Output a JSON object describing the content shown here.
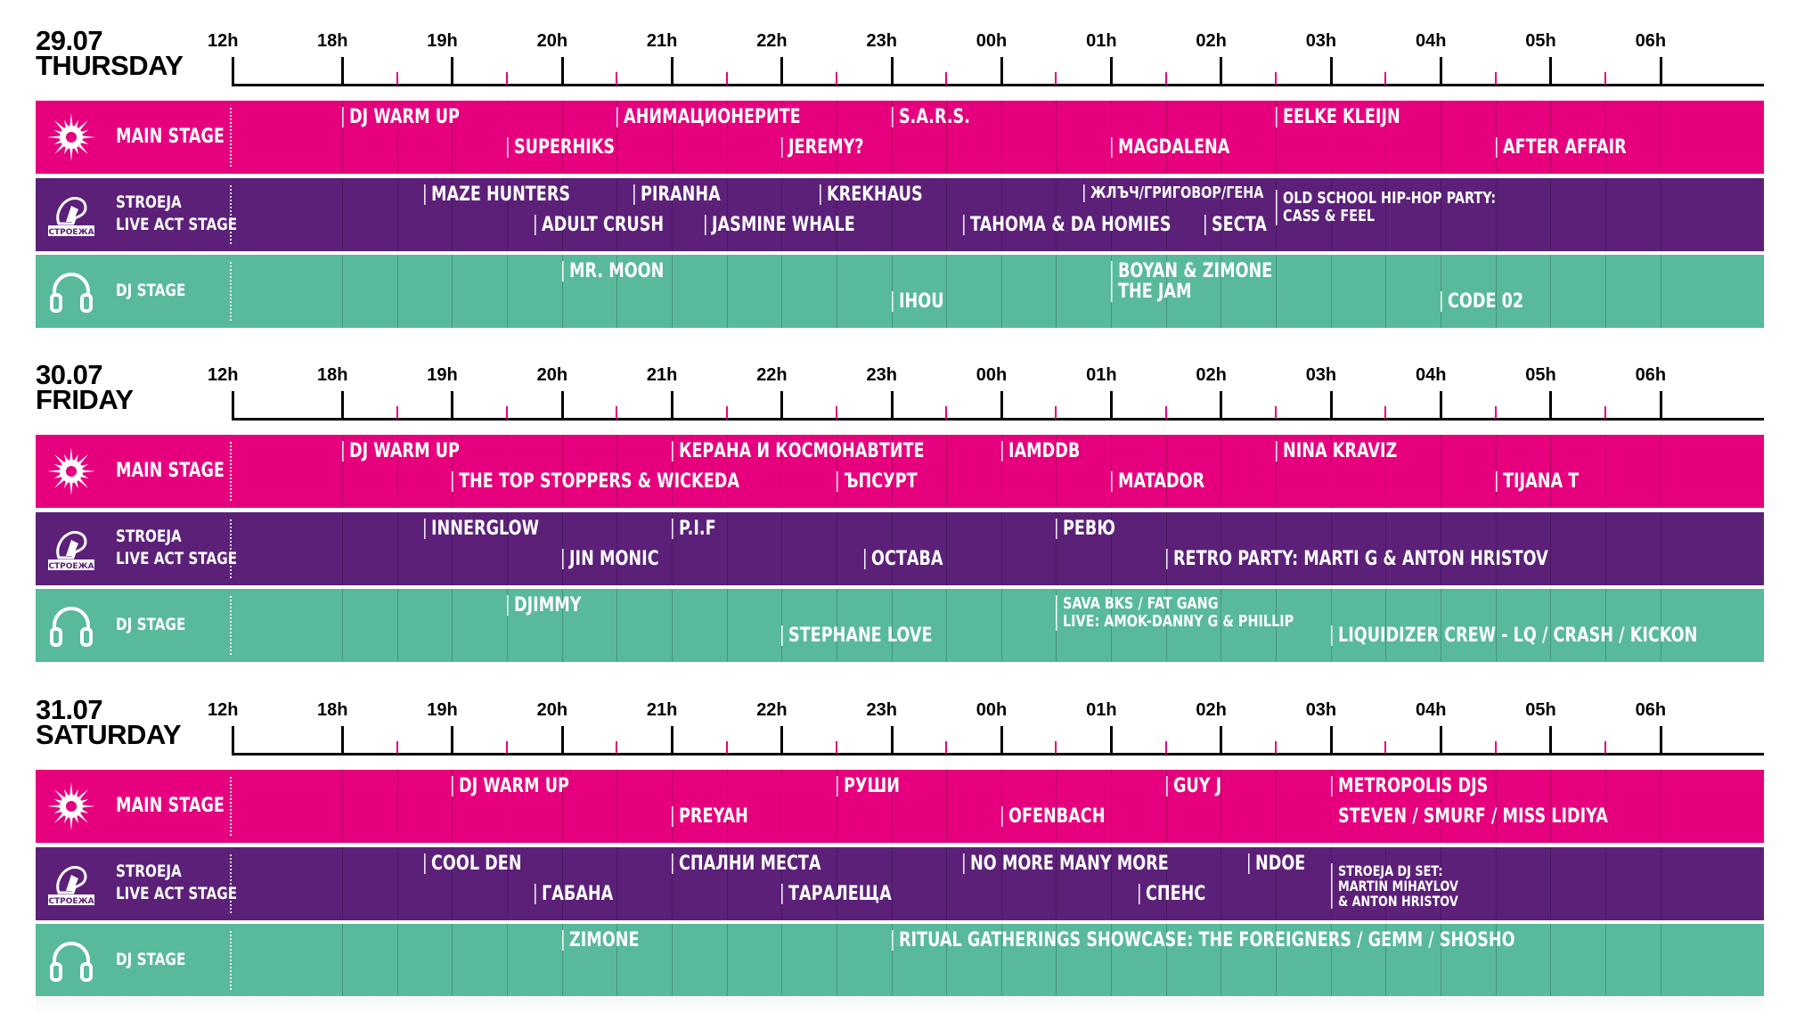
{
  "hours": [
    "12h",
    "18h",
    "19h",
    "20h",
    "21h",
    "22h",
    "23h",
    "00h",
    "01h",
    "02h",
    "03h",
    "04h",
    "05h",
    "06h"
  ],
  "stages": {
    "main": "MAIN STAGE",
    "live_line1": "STROEJA",
    "live_line2": "LIVE ACT STAGE",
    "dj": "DJ STAGE",
    "live_logo_text": "СТРОЕЖА"
  },
  "colors": {
    "main": "#e6007e",
    "live": "#5c2079",
    "dj": "#58b99d",
    "tick": "#e5007e"
  },
  "days": [
    {
      "date": "29.07",
      "name": "THURSDAY",
      "main": [
        {
          "name": "DJ WARM UP",
          "start": 18,
          "line": 1
        },
        {
          "name": "АНИМАЦИОНЕРИТЕ",
          "start": 20.5,
          "line": 1
        },
        {
          "name": "S.A.R.S.",
          "start": 23,
          "line": 1
        },
        {
          "name": "EELKE KLEIJN",
          "start": 26.5,
          "line": 1
        },
        {
          "name": "SUPERHIKS",
          "start": 19.5,
          "line": 2
        },
        {
          "name": "JEREMY?",
          "start": 22,
          "line": 2
        },
        {
          "name": "MAGDALENA",
          "start": 25,
          "line": 2
        },
        {
          "name": "AFTER AFFAIR",
          "start": 28.5,
          "line": 2
        }
      ],
      "live": [
        {
          "name": "MAZE HUNTERS",
          "start": 18.75,
          "line": 1
        },
        {
          "name": "PIRANHA",
          "start": 20.65,
          "line": 1
        },
        {
          "name": "KREKHAUS",
          "start": 22.35,
          "line": 1
        },
        {
          "name": "ЖЛЪЧ/ГРИГОВОР/ГЕНА",
          "start": 24.75,
          "line": 1,
          "size": "small"
        },
        {
          "name": "OLD SCHOOL HIP-HOP PARTY:\nCASS & FEEL",
          "start": 26.5,
          "line": 1,
          "size": "small",
          "two": true
        },
        {
          "name": "ADULT CRUSH",
          "start": 19.75,
          "line": 2
        },
        {
          "name": "JASMINE WHALE",
          "start": 21.3,
          "line": 2
        },
        {
          "name": "TAHOMA & DA HOMIES",
          "start": 23.65,
          "line": 2
        },
        {
          "name": "SECTA",
          "start": 25.85,
          "line": 2
        }
      ],
      "dj": [
        {
          "name": "MR. MOON",
          "start": 20,
          "line": 1
        },
        {
          "name": "BOYAN & ZIMONE\nTHE JAM",
          "start": 25,
          "line": 1,
          "two": true
        },
        {
          "name": "IHOU",
          "start": 23,
          "line": 2
        },
        {
          "name": "CODE 02",
          "start": 28,
          "line": 2
        }
      ]
    },
    {
      "date": "30.07",
      "name": "FRIDAY",
      "main": [
        {
          "name": "DJ WARM UP",
          "start": 18,
          "line": 1
        },
        {
          "name": "КЕРАНА И КОСМОНАВТИТЕ",
          "start": 21,
          "line": 1
        },
        {
          "name": "IAMDDB",
          "start": 24,
          "line": 1
        },
        {
          "name": "NINA KRAVIZ",
          "start": 26.5,
          "line": 1
        },
        {
          "name": "THE TOP STOPPERS & WICKEDA",
          "start": 19,
          "line": 2
        },
        {
          "name": "ЪПСУРТ",
          "start": 22.5,
          "line": 2
        },
        {
          "name": "MATADOR",
          "start": 25,
          "line": 2
        },
        {
          "name": "TIJANA T",
          "start": 28.5,
          "line": 2
        }
      ],
      "live": [
        {
          "name": "INNERGLOW",
          "start": 18.75,
          "line": 1
        },
        {
          "name": "P.I.F",
          "start": 21,
          "line": 1
        },
        {
          "name": "РЕВЮ",
          "start": 24.5,
          "line": 1
        },
        {
          "name": "JIN MONIC",
          "start": 20,
          "line": 2
        },
        {
          "name": "ОСТАВА",
          "start": 22.75,
          "line": 2
        },
        {
          "name": "RETRO PARTY: MARTI G & ANTON HRISTOV",
          "start": 25.5,
          "line": 2
        }
      ],
      "dj": [
        {
          "name": "DJIMMY",
          "start": 19.5,
          "line": 1
        },
        {
          "name": "SAVA BKS / FAT GANG\nLIVE: AMOK-DANNY G & PHILLIP",
          "start": 24.5,
          "line": 1,
          "size": "small",
          "two": true
        },
        {
          "name": "STEPHANE LOVE",
          "start": 22,
          "line": 2
        },
        {
          "name": "LIQUIDIZER CREW - LQ / CRASH / KICKON",
          "start": 27,
          "line": 2
        }
      ]
    },
    {
      "date": "31.07",
      "name": "SATURDAY",
      "main": [
        {
          "name": "DJ WARM UP",
          "start": 19,
          "line": 1
        },
        {
          "name": "РУШИ",
          "start": 22.5,
          "line": 1
        },
        {
          "name": "GUY J",
          "start": 25.5,
          "line": 1
        },
        {
          "name": "METROPOLIS DJS",
          "start": 27,
          "line": 1
        },
        {
          "name": "PREYAH",
          "start": 21,
          "line": 2
        },
        {
          "name": "OFENBACH",
          "start": 24,
          "line": 2
        },
        {
          "name": "STEVEN / SMURF / MISS LIDIYA",
          "start": 27,
          "line": 2,
          "noborder": true
        }
      ],
      "live": [
        {
          "name": "COOL DEN",
          "start": 18.75,
          "line": 1
        },
        {
          "name": "СПАЛНИ МЕСТА",
          "start": 21,
          "line": 1
        },
        {
          "name": "NO MORE MANY MORE",
          "start": 23.65,
          "line": 1
        },
        {
          "name": "NDOE",
          "start": 26.25,
          "line": 1
        },
        {
          "name": "STROEJA DJ SET:\nMARTIN MIHAYLOV\n& ANTON HRISTOV",
          "start": 27,
          "line": 1,
          "size": "tiny",
          "two": true
        },
        {
          "name": "ГАБАНА",
          "start": 19.75,
          "line": 2
        },
        {
          "name": "ТАРАЛЕЩА",
          "start": 22,
          "line": 2
        },
        {
          "name": "СПЕНС",
          "start": 25.25,
          "line": 2
        }
      ],
      "dj": [
        {
          "name": "ZIMONE",
          "start": 20,
          "line": 1
        },
        {
          "name": "RITUAL GATHERINGS SHOWCASE: THE FOREIGNERS / GEMM / SHOSHO",
          "start": 23,
          "line": 1
        }
      ]
    }
  ]
}
